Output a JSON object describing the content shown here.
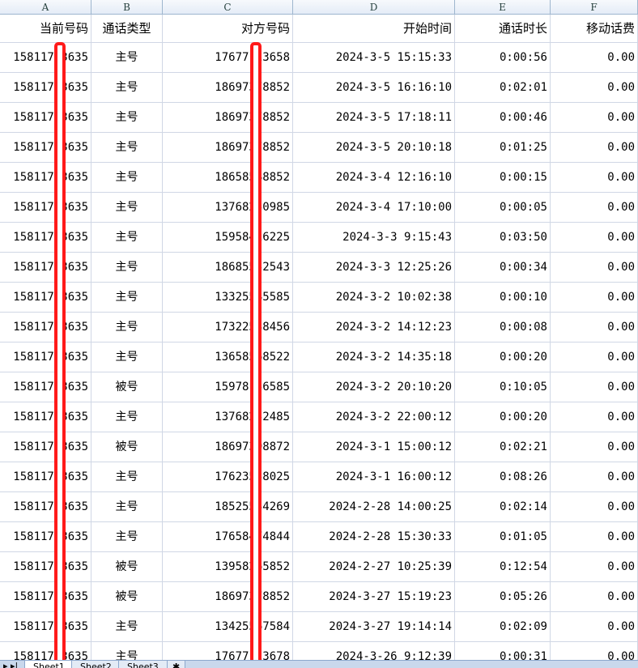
{
  "columns": [
    "A",
    "B",
    "C",
    "D",
    "E",
    "F"
  ],
  "headers": [
    "当前号码",
    "通话类型",
    "对方号码",
    "开始时间",
    "通话时长",
    "移动话费"
  ],
  "rows": [
    [
      "15811753635",
      "主号",
      "17677123658",
      "2024-3-5 15:15:33",
      "0:00:56",
      "0.00"
    ],
    [
      "15811753635",
      "主号",
      "18697378852",
      "2024-3-5 16:16:10",
      "0:02:01",
      "0.00"
    ],
    [
      "15811753635",
      "主号",
      "18697378852",
      "2024-3-5 17:18:11",
      "0:00:46",
      "0.00"
    ],
    [
      "15811753635",
      "主号",
      "18697378852",
      "2024-3-5 20:10:18",
      "0:01:25",
      "0.00"
    ],
    [
      "15811753635",
      "主号",
      "18658548852",
      "2024-3-4 12:16:10",
      "0:00:15",
      "0.00"
    ],
    [
      "15811753635",
      "主号",
      "13768250985",
      "2024-3-4 17:10:00",
      "0:00:05",
      "0.00"
    ],
    [
      "15811753635",
      "主号",
      "15958426225",
      "2024-3-3 9:15:43",
      "0:03:50",
      "0.00"
    ],
    [
      "15811753635",
      "主号",
      "18685552543",
      "2024-3-3 12:25:26",
      "0:00:34",
      "0.00"
    ],
    [
      "15811753635",
      "主号",
      "13325545585",
      "2024-3-2 10:02:38",
      "0:00:10",
      "0.00"
    ],
    [
      "15811753635",
      "主号",
      "17322538456",
      "2024-3-2 14:12:23",
      "0:00:08",
      "0.00"
    ],
    [
      "15811753635",
      "主号",
      "13658568522",
      "2024-3-2 14:35:18",
      "0:00:20",
      "0.00"
    ],
    [
      "15811753635",
      "被号",
      "15978156585",
      "2024-3-2 20:10:20",
      "0:10:05",
      "0.00"
    ],
    [
      "15811753635",
      "主号",
      "13768252485",
      "2024-3-2 22:00:12",
      "0:00:20",
      "0.00"
    ],
    [
      "15811753635",
      "被号",
      "18697398872",
      "2024-3-1 15:00:12",
      "0:02:21",
      "0.00"
    ],
    [
      "15811753635",
      "主号",
      "17623558025",
      "2024-3-1 16:00:12",
      "0:08:26",
      "0.00"
    ],
    [
      "15811753635",
      "主号",
      "18525534269",
      "2024-2-28 14:00:25",
      "0:02:14",
      "0.00"
    ],
    [
      "15811753635",
      "主号",
      "17658474844",
      "2024-2-28 15:30:33",
      "0:01:05",
      "0.00"
    ],
    [
      "15811753635",
      "被号",
      "13958265852",
      "2024-2-27 10:25:39",
      "0:12:54",
      "0.00"
    ],
    [
      "15811753635",
      "被号",
      "18697378852",
      "2024-3-27 15:19:23",
      "0:05:26",
      "0.00"
    ],
    [
      "15811753635",
      "主号",
      "13425567584",
      "2024-3-27 19:14:14",
      "0:02:09",
      "0.00"
    ],
    [
      "15811753635",
      "主号",
      "17677123678",
      "2024-3-26 9:12:39",
      "0:00:31",
      "0.00"
    ]
  ],
  "sheet_tabs": [
    "Sheet1",
    "Sheet2",
    "Sheet3"
  ],
  "redaction_color": "#ff1a1a"
}
